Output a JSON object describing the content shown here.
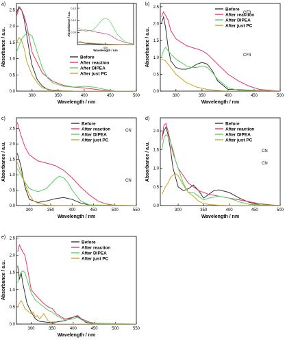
{
  "colors": {
    "Before": "#333333",
    "After reaction": "#e8336b",
    "After DIPEA": "#4fd15c",
    "After just PC": "#c9a226"
  },
  "chart_data": [
    {
      "panel": "a)",
      "type": "line",
      "xlabel": "Wavelength / nm",
      "ylabel": "Absorbance / a.u.",
      "xlim": [
        270,
        500
      ],
      "ylim": [
        0,
        2.7
      ],
      "xticks": [
        300,
        350,
        400,
        450,
        500
      ],
      "yticks": [
        0.0,
        0.5,
        1.0,
        1.5,
        2.0,
        2.5
      ],
      "legend": [
        "Before",
        "After reaction",
        "After DIPEA",
        "After just PC"
      ],
      "series": [
        {
          "name": "Before",
          "x": [
            270,
            275,
            280,
            285,
            290,
            295,
            300,
            310,
            320,
            330,
            340,
            350,
            360,
            380,
            500
          ],
          "y": [
            2.4,
            2.6,
            2.5,
            2.2,
            1.7,
            1.2,
            0.8,
            0.35,
            0.15,
            0.05,
            0.03,
            0.02,
            0.01,
            0.0,
            0.0
          ]
        },
        {
          "name": "After reaction",
          "x": [
            270,
            275,
            280,
            285,
            290,
            300,
            320,
            340,
            360,
            380,
            400,
            420,
            440,
            460,
            500
          ],
          "y": [
            2.3,
            2.55,
            2.5,
            2.3,
            2.0,
            1.2,
            0.55,
            0.3,
            0.18,
            0.12,
            0.1,
            0.06,
            0.02,
            0.0,
            0.0
          ]
        },
        {
          "name": "After DIPEA",
          "x": [
            270,
            280,
            290,
            300,
            310,
            320,
            330,
            340,
            360,
            380,
            400,
            420,
            440,
            460,
            500
          ],
          "y": [
            1.2,
            1.6,
            1.8,
            1.7,
            1.2,
            0.7,
            0.4,
            0.25,
            0.15,
            0.12,
            0.15,
            0.12,
            0.05,
            0.0,
            0.0
          ]
        },
        {
          "name": "After just PC",
          "x": [
            270,
            275,
            280,
            285,
            290,
            300,
            310,
            320,
            340,
            360,
            380,
            500
          ],
          "y": [
            1.5,
            1.65,
            1.55,
            1.3,
            0.9,
            0.5,
            0.25,
            0.1,
            0.03,
            0.01,
            0.0,
            0.0
          ]
        }
      ],
      "inset": {
        "xlabel": "Wavelength / nm",
        "ylabel": "Absorbance / a.u.",
        "xlim": [
          330,
          470
        ],
        "ylim": [
          0,
          0.17
        ],
        "xticks": [
          400
        ],
        "yticks": [
          0.05,
          0.1,
          0.15
        ],
        "series": [
          {
            "name": "Before",
            "x": [
              330,
              350,
              370,
              390,
              410,
              430,
              450,
              470
            ],
            "y": [
              0.01,
              0.005,
              0.003,
              0.002,
              0.001,
              0.0,
              0.0,
              0.0
            ]
          },
          {
            "name": "After reaction",
            "x": [
              330,
              350,
              370,
              380,
              390,
              400,
              410,
              420,
              430,
              450,
              470
            ],
            "y": [
              0.058,
              0.06,
              0.055,
              0.05,
              0.048,
              0.045,
              0.04,
              0.03,
              0.02,
              0.008,
              0.002
            ]
          },
          {
            "name": "After DIPEA",
            "x": [
              330,
              350,
              370,
              380,
              390,
              400,
              410,
              420,
              430,
              450,
              470
            ],
            "y": [
              0.07,
              0.055,
              0.06,
              0.08,
              0.1,
              0.11,
              0.1,
              0.07,
              0.04,
              0.01,
              0.002
            ]
          },
          {
            "name": "After just PC",
            "x": [
              330,
              350,
              370,
              390,
              410,
              430,
              450,
              470
            ],
            "y": [
              0.015,
              0.008,
              0.005,
              0.003,
              0.002,
              0.001,
              0.0,
              0.0
            ]
          }
        ]
      }
    },
    {
      "panel": "b)",
      "type": "line",
      "xlabel": "Wavelength / nm",
      "ylabel": "Absorbance / a.u.",
      "xlim": [
        270,
        500
      ],
      "ylim": [
        0,
        2.6
      ],
      "xticks": [
        300,
        350,
        400,
        450,
        500
      ],
      "yticks": [
        0.0,
        0.5,
        1.0,
        1.5,
        2.0,
        2.5
      ],
      "legend": [
        "Before",
        "After reaction",
        "After DIPEA",
        "After just PC",
        "CF3",
        "CF3"
      ],
      "series": [
        {
          "name": "Before",
          "x": [
            272,
            276,
            280,
            285,
            290,
            300,
            310,
            320,
            330,
            340,
            350,
            360,
            370,
            380,
            400,
            500
          ],
          "y": [
            2.0,
            2.2,
            1.9,
            1.3,
            0.9,
            0.7,
            0.65,
            0.65,
            0.7,
            0.8,
            0.85,
            0.8,
            0.6,
            0.3,
            0.05,
            0.0
          ]
        },
        {
          "name": "After reaction",
          "x": [
            272,
            276,
            280,
            285,
            290,
            300,
            320,
            340,
            350,
            360,
            380,
            400,
            420,
            440,
            460,
            500
          ],
          "y": [
            2.2,
            2.35,
            2.25,
            2.1,
            1.8,
            1.55,
            1.35,
            1.25,
            1.2,
            1.1,
            0.8,
            0.5,
            0.3,
            0.15,
            0.05,
            0.0
          ]
        },
        {
          "name": "After DIPEA",
          "x": [
            272,
            276,
            280,
            290,
            300,
            310,
            320,
            330,
            340,
            350,
            360,
            370,
            380,
            400,
            420,
            500
          ],
          "y": [
            1.0,
            1.2,
            1.3,
            1.1,
            0.95,
            0.85,
            0.75,
            0.7,
            0.7,
            0.75,
            0.7,
            0.55,
            0.35,
            0.1,
            0.02,
            0.0
          ]
        },
        {
          "name": "After just PC",
          "x": [
            272,
            280,
            290,
            300,
            320,
            340,
            360,
            380,
            400,
            500
          ],
          "y": [
            0.95,
            0.9,
            0.7,
            0.5,
            0.25,
            0.12,
            0.05,
            0.02,
            0.0,
            0.0
          ]
        }
      ]
    },
    {
      "panel": "c)",
      "type": "line",
      "xlabel": "Wavelength / nm",
      "ylabel": "Absorbance / a.u.",
      "xlim": [
        270,
        550
      ],
      "ylim": [
        0,
        2.85
      ],
      "xticks": [
        300,
        350,
        400,
        450,
        500,
        550
      ],
      "yticks": [
        0.0,
        0.5,
        1.0,
        1.5,
        2.0,
        2.5
      ],
      "legend": [
        "Before",
        "After reaction",
        "After DIPEA",
        "After just PC",
        "CN",
        "CN"
      ],
      "series": [
        {
          "name": "Before",
          "x": [
            272,
            280,
            290,
            300,
            320,
            340,
            360,
            380,
            400,
            420,
            440,
            460,
            550
          ],
          "y": [
            1.7,
            1.3,
            0.6,
            0.2,
            0.1,
            0.15,
            0.22,
            0.26,
            0.2,
            0.08,
            0.02,
            0.0,
            0.0
          ]
        },
        {
          "name": "After reaction",
          "x": [
            272,
            280,
            290,
            300,
            320,
            340,
            360,
            380,
            400,
            420,
            440,
            460,
            480,
            500,
            550
          ],
          "y": [
            2.7,
            2.3,
            1.9,
            1.65,
            1.45,
            1.38,
            1.3,
            1.15,
            0.9,
            0.6,
            0.35,
            0.15,
            0.05,
            0.01,
            0.0
          ]
        },
        {
          "name": "After DIPEA",
          "x": [
            272,
            280,
            290,
            300,
            320,
            340,
            350,
            360,
            370,
            380,
            390,
            400,
            420,
            440,
            550
          ],
          "y": [
            1.2,
            1.0,
            0.75,
            0.55,
            0.45,
            0.55,
            0.7,
            0.85,
            0.95,
            0.9,
            0.75,
            0.5,
            0.15,
            0.02,
            0.0
          ]
        },
        {
          "name": "After just PC",
          "x": [
            272,
            280,
            290,
            300,
            310,
            320,
            340,
            360,
            550
          ],
          "y": [
            1.4,
            1.1,
            0.7,
            0.35,
            0.15,
            0.08,
            0.02,
            0.0,
            0.0
          ]
        }
      ]
    },
    {
      "panel": "d)",
      "type": "line",
      "xlabel": "Wavelength / nm",
      "ylabel": "Absorbance / a.u.",
      "xlim": [
        265,
        500
      ],
      "ylim": [
        0,
        2.35
      ],
      "xticks": [
        300,
        350,
        400,
        450,
        500
      ],
      "yticks": [
        0.0,
        0.5,
        1.0,
        1.5,
        2.0
      ],
      "legend": [
        "Before",
        "After reaction",
        "After DIPEA",
        "After just PC",
        "CN",
        "CN"
      ],
      "series": [
        {
          "name": "Before",
          "x": [
            268,
            272,
            276,
            280,
            285,
            290,
            300,
            310,
            320,
            330,
            340,
            350,
            360,
            370,
            380,
            400,
            420,
            440,
            460,
            500
          ],
          "y": [
            1.8,
            2.0,
            2.1,
            1.9,
            1.5,
            1.0,
            0.5,
            0.4,
            0.45,
            0.55,
            0.4,
            0.2,
            0.3,
            0.4,
            0.42,
            0.35,
            0.2,
            0.08,
            0.02,
            0.0
          ]
        },
        {
          "name": "After reaction",
          "x": [
            268,
            272,
            276,
            280,
            285,
            290,
            300,
            320,
            340,
            360,
            380,
            400,
            420,
            440,
            460,
            480,
            500
          ],
          "y": [
            1.75,
            2.15,
            2.2,
            2.0,
            1.7,
            1.4,
            1.0,
            0.6,
            0.4,
            0.3,
            0.25,
            0.2,
            0.15,
            0.1,
            0.05,
            0.02,
            0.0
          ]
        },
        {
          "name": "After DIPEA",
          "x": [
            268,
            272,
            276,
            280,
            285,
            290,
            295,
            300,
            310,
            320,
            330,
            340,
            350,
            360,
            380,
            400,
            420,
            440,
            500
          ],
          "y": [
            1.5,
            1.8,
            1.9,
            1.85,
            1.7,
            1.5,
            1.2,
            1.0,
            0.6,
            0.35,
            0.35,
            0.25,
            0.15,
            0.2,
            0.25,
            0.2,
            0.1,
            0.03,
            0.0
          ]
        },
        {
          "name": "After just PC",
          "x": [
            268,
            275,
            280,
            285,
            290,
            295,
            300,
            310,
            320,
            330,
            340,
            350,
            360,
            380,
            400,
            500
          ],
          "y": [
            0.3,
            0.5,
            0.6,
            0.75,
            0.82,
            0.85,
            0.8,
            0.55,
            0.35,
            0.25,
            0.12,
            0.05,
            0.03,
            0.01,
            0.0,
            0.0
          ]
        }
      ]
    },
    {
      "panel": "e)",
      "type": "line",
      "xlabel": "Wavelength / nm",
      "ylabel": "Absorbance / a.u.",
      "xlim": [
        265,
        550
      ],
      "ylim": [
        0,
        2.55
      ],
      "xticks": [
        300,
        350,
        400,
        450,
        500,
        550
      ],
      "yticks": [
        0.0,
        0.5,
        1.0,
        1.5,
        2.0,
        2.5
      ],
      "legend": [
        "Before",
        "After reaction",
        "After DIPEA",
        "After just PC"
      ],
      "series": [
        {
          "name": "Before",
          "x": [
            268,
            272,
            276,
            280,
            285,
            290,
            300,
            310,
            320,
            340,
            360,
            380,
            400,
            410,
            420,
            430,
            450,
            550
          ],
          "y": [
            1.7,
            1.3,
            1.5,
            1.2,
            0.9,
            0.6,
            0.35,
            0.15,
            0.08,
            0.05,
            0.06,
            0.1,
            0.2,
            0.22,
            0.15,
            0.05,
            0.0,
            0.0
          ]
        },
        {
          "name": "After reaction",
          "x": [
            268,
            272,
            276,
            280,
            285,
            290,
            295,
            300,
            310,
            320,
            330,
            340,
            350,
            360,
            380,
            400,
            410,
            420,
            440,
            460,
            550
          ],
          "y": [
            2.1,
            2.3,
            2.2,
            2.1,
            2.0,
            1.7,
            1.35,
            1.0,
            0.85,
            0.72,
            0.6,
            0.5,
            0.45,
            0.3,
            0.15,
            0.2,
            0.25,
            0.15,
            0.05,
            0.01,
            0.0
          ]
        },
        {
          "name": "After DIPEA",
          "x": [
            268,
            272,
            276,
            280,
            285,
            290,
            295,
            300,
            310,
            320,
            330,
            340,
            350,
            360,
            380,
            400,
            410,
            420,
            440,
            550
          ],
          "y": [
            1.2,
            1.4,
            1.5,
            1.55,
            1.5,
            1.3,
            1.1,
            0.9,
            0.7,
            0.6,
            0.5,
            0.4,
            0.35,
            0.25,
            0.12,
            0.15,
            0.2,
            0.12,
            0.03,
            0.0
          ]
        },
        {
          "name": "After just PC",
          "x": [
            268,
            272,
            276,
            280,
            285,
            290,
            295,
            300,
            305,
            310,
            315,
            320,
            330,
            340,
            350,
            360,
            550
          ],
          "y": [
            0.5,
            0.6,
            0.68,
            0.6,
            0.45,
            0.4,
            0.35,
            0.3,
            0.35,
            0.2,
            0.25,
            0.15,
            0.3,
            0.1,
            0.03,
            0.0,
            0.0
          ]
        }
      ]
    }
  ]
}
